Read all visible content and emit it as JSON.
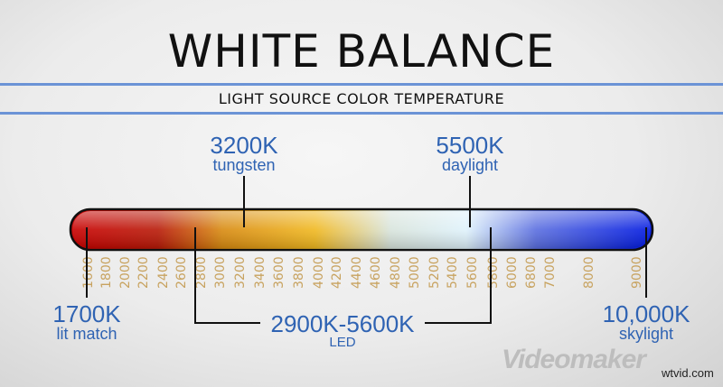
{
  "title": "WHITE BALANCE",
  "subtitle": "LIGHT SOURCE COLOR TEMPERATURE",
  "accent_color": "#2f63b3",
  "tick_color": "#c8a360",
  "scale_ticks": [
    "1600",
    "1800",
    "2000",
    "2200",
    "2400",
    "2600",
    "2800",
    "3000",
    "3200",
    "3400",
    "3600",
    "3800",
    "4000",
    "4200",
    "4400",
    "4600",
    "4800",
    "5000",
    "5200",
    "5400",
    "5600",
    "5800",
    "6000",
    "6800",
    "7000",
    "8000",
    "9000"
  ],
  "callouts": {
    "tungsten": {
      "value": "3200K",
      "label": "tungsten"
    },
    "daylight": {
      "value": "5500K",
      "label": "daylight"
    },
    "match": {
      "value": "1700K",
      "label": "lit match"
    },
    "led": {
      "value": "2900K-5600K",
      "label": "LED"
    },
    "skylight": {
      "value": "10,000K",
      "label": "skylight"
    }
  },
  "watermark": "Videomaker",
  "site": "wtvid.com"
}
